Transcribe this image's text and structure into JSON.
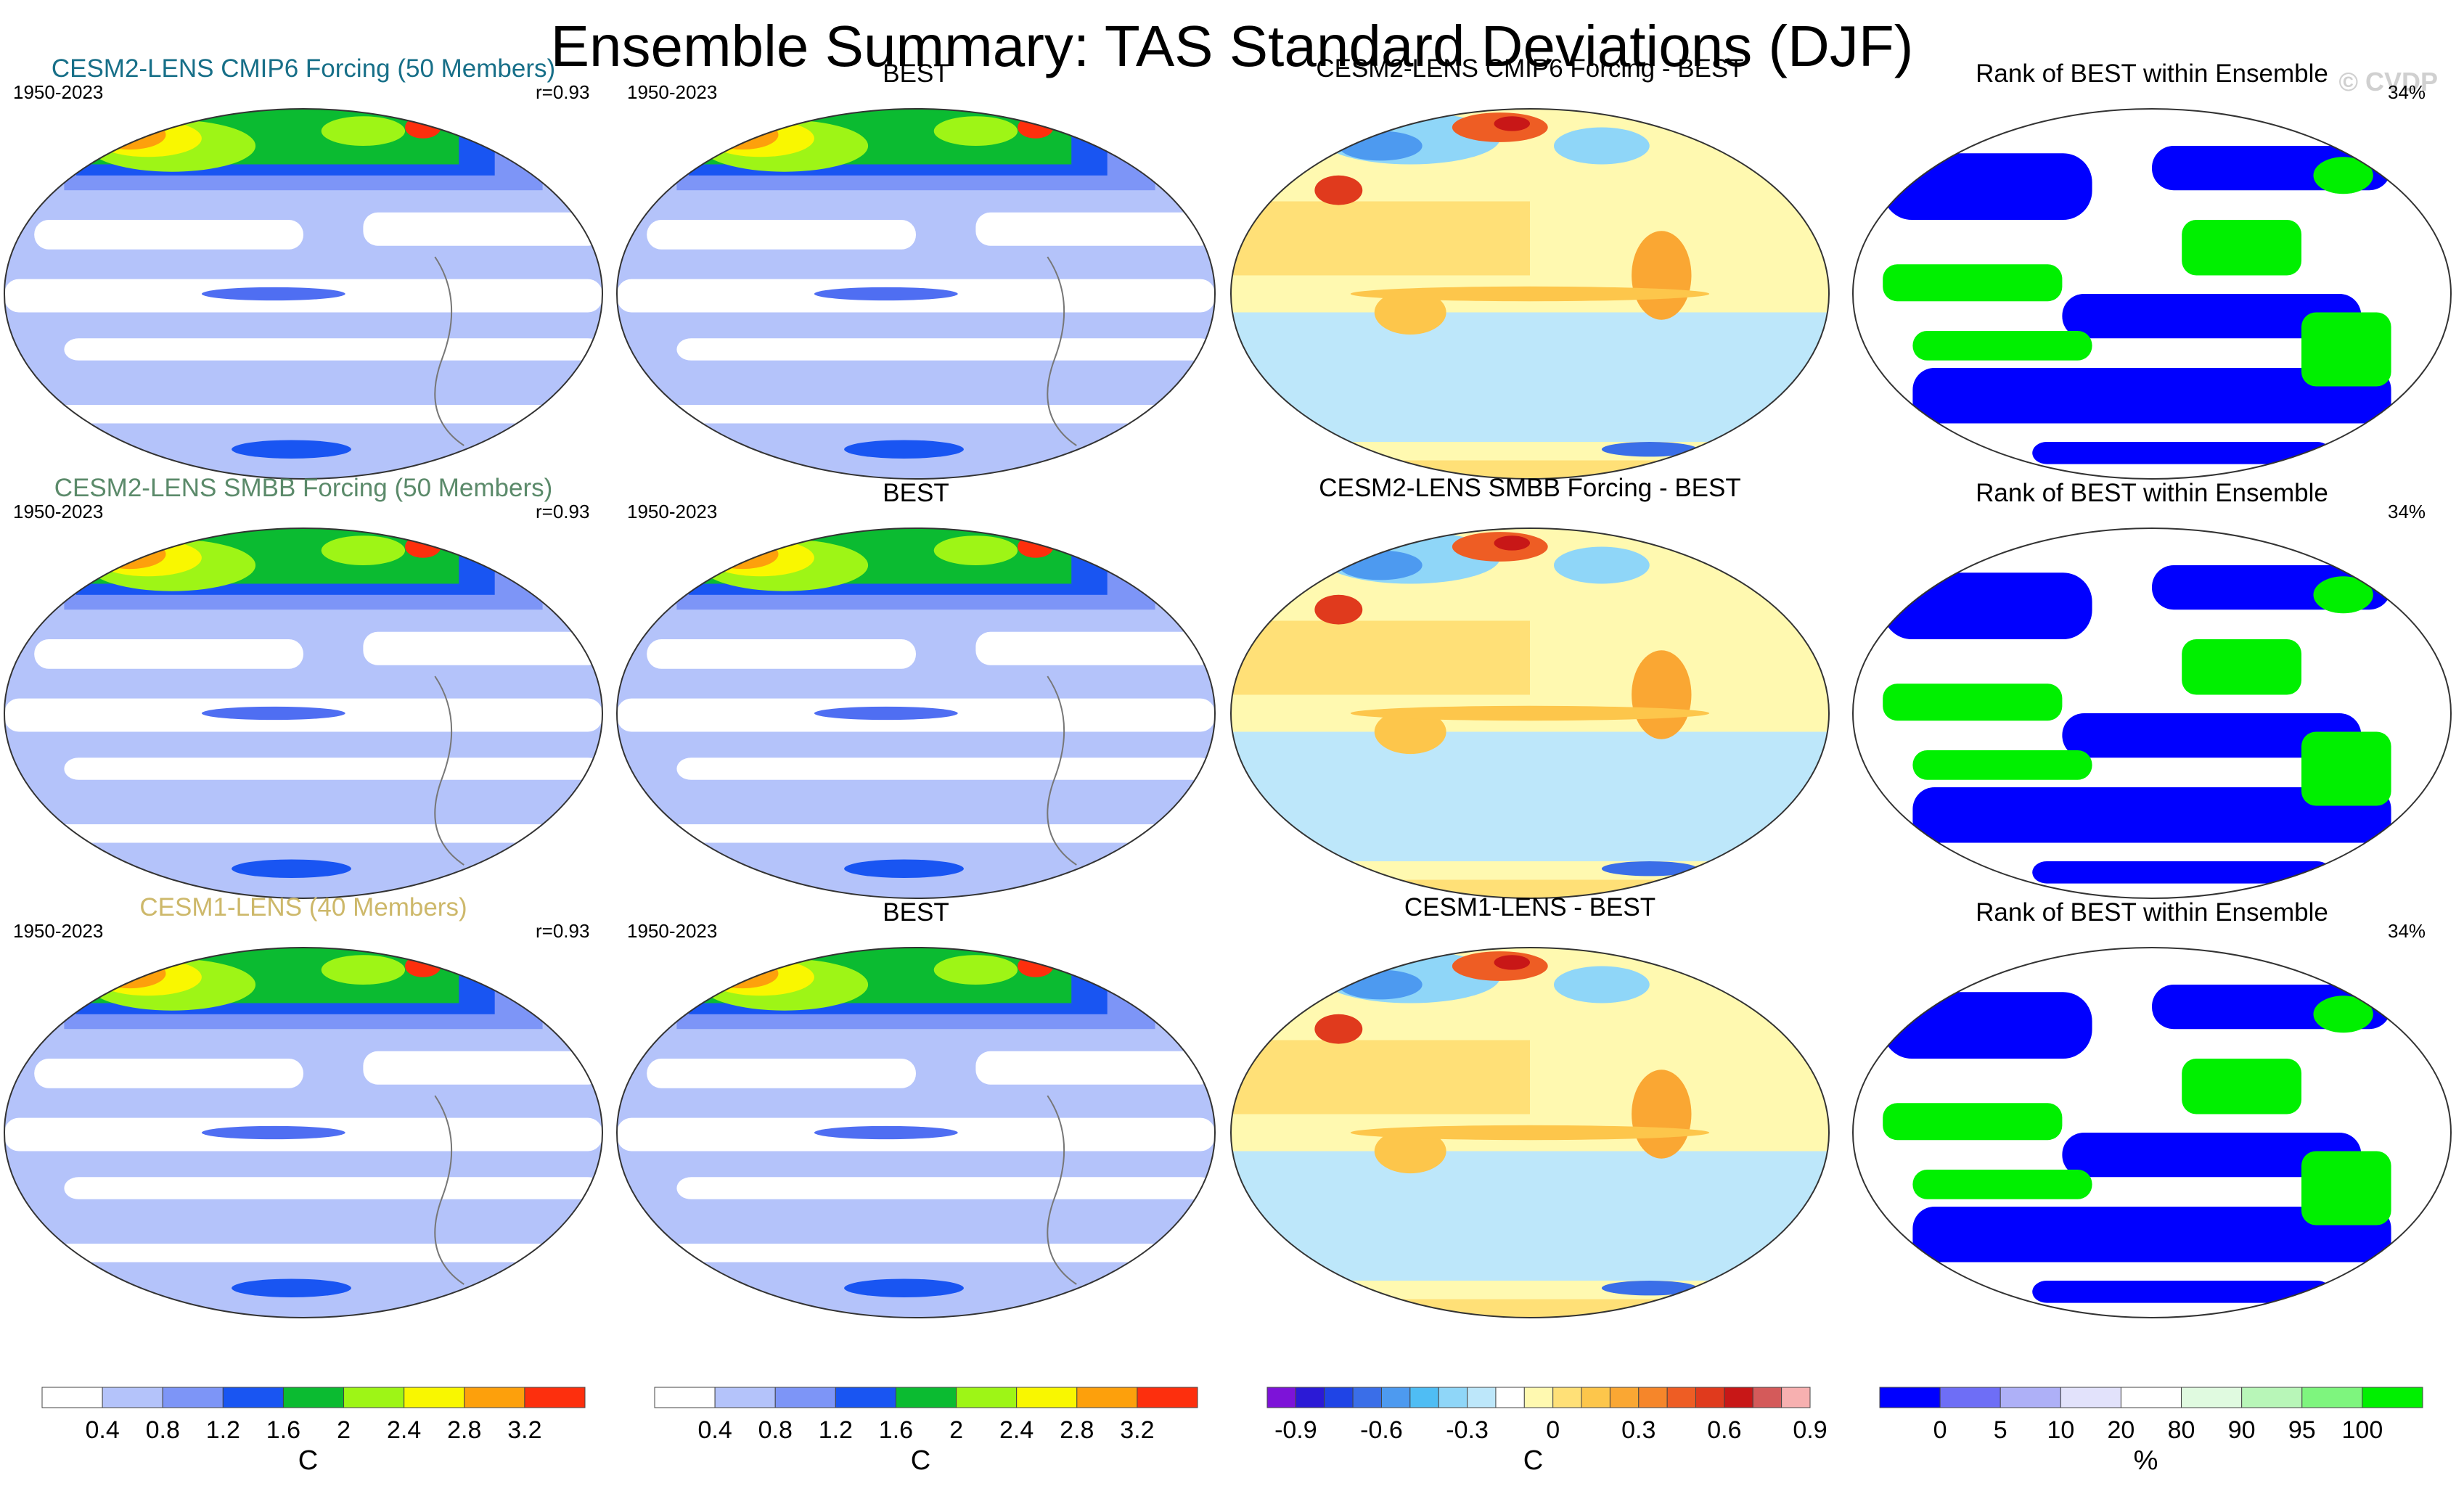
{
  "title": "Ensemble Summary: TAS Standard Deviations (DJF)",
  "copyright": "© CVDP",
  "colors": {
    "title_cmip6": "#176f88",
    "title_smbb": "#5b8a6a",
    "title_cesm1": "#cdb86a"
  },
  "rows": [
    {
      "ensemble_title": "CESM2-LENS CMIP6 Forcing (50 Members)",
      "ensemble_color": "#176f88",
      "years": "1950-2023",
      "corr": "r=0.93",
      "obs_title": "BEST",
      "obs_years": "1950-2023",
      "diff_title": "CESM2-LENS CMIP6 Forcing - BEST",
      "rank_title": "Rank of BEST within Ensemble",
      "rank_pct": "34%"
    },
    {
      "ensemble_title": "CESM2-LENS SMBB Forcing (50 Members)",
      "ensemble_color": "#5b8a6a",
      "years": "1950-2023",
      "corr": "r=0.93",
      "obs_title": "BEST",
      "obs_years": "1950-2023",
      "diff_title": "CESM2-LENS SMBB Forcing - BEST",
      "rank_title": "Rank of BEST within Ensemble",
      "rank_pct": "34%"
    },
    {
      "ensemble_title": "CESM1-LENS (40 Members)",
      "ensemble_color": "#cdb86a",
      "years": "1950-2023",
      "corr": "r=0.93",
      "obs_title": "BEST",
      "obs_years": "1950-2023",
      "diff_title": "CESM1-LENS - BEST",
      "rank_title": "Rank of BEST within Ensemble",
      "rank_pct": "34%"
    }
  ],
  "chart_data": [
    {
      "type": "heatmap",
      "name": "std-dev-colorbar",
      "unit": "C",
      "tick_labels": [
        "0.4",
        "0.8",
        "1.2",
        "1.6",
        "2",
        "2.4",
        "2.8",
        "3.2"
      ],
      "colors": [
        "#ffffff",
        "#b4c3fa",
        "#7d95f7",
        "#1955f2",
        "#0bbb31",
        "#9ef516",
        "#f9f700",
        "#fda00c",
        "#fd2f0d"
      ]
    },
    {
      "type": "heatmap",
      "name": "difference-colorbar",
      "unit": "C",
      "tick_labels": [
        "-0.9",
        "-0.6",
        "-0.3",
        "0",
        "0.3",
        "0.6",
        "0.9"
      ],
      "colors": [
        "#7d13d8",
        "#2b1ad6",
        "#1f44e6",
        "#3a6ee8",
        "#4d9af0",
        "#4fbdf4",
        "#8fd6f8",
        "#bde7fa",
        "#ffffff",
        "#fff9b0",
        "#ffe077",
        "#fdc64b",
        "#faa733",
        "#f6862a",
        "#ee5d24",
        "#e03a1d",
        "#c81717",
        "#d45a5a",
        "#f7b0b0"
      ]
    },
    {
      "type": "heatmap",
      "name": "rank-colorbar",
      "unit": "%",
      "tick_labels": [
        "0",
        "5",
        "10",
        "20",
        "80",
        "90",
        "95",
        "100"
      ],
      "colors": [
        "#0000ff",
        "#6e6ef6",
        "#aeb0f7",
        "#e2e2fb",
        "#ffffff",
        "#e0fae0",
        "#b8f6b8",
        "#7ef57e",
        "#00f000"
      ]
    }
  ]
}
